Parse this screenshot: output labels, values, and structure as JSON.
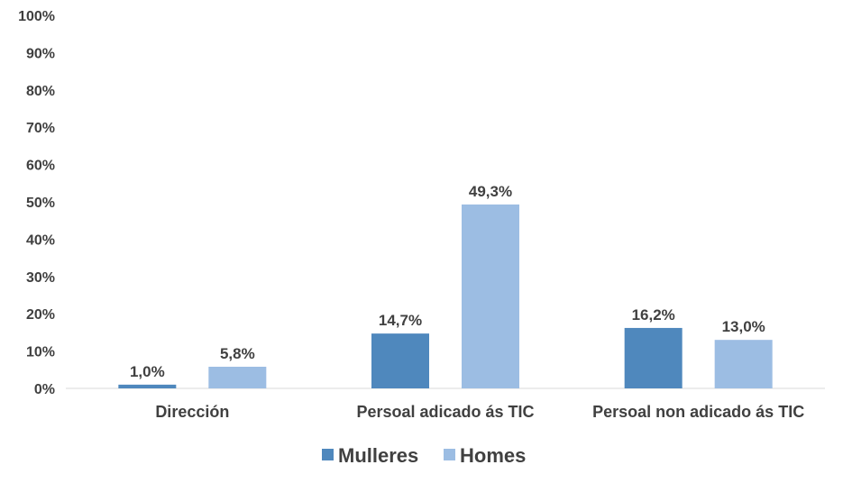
{
  "chart_data": {
    "type": "bar",
    "title": "",
    "xlabel": "",
    "ylabel": "",
    "categories": [
      "Dirección",
      "Persoal adicado ás TIC",
      "Persoal non adicado ás TIC"
    ],
    "series": [
      {
        "name": "Mulleres",
        "values": [
          1.0,
          14.7,
          16.2
        ],
        "labels": [
          "1,0%",
          "14,7%",
          "16,2%"
        ],
        "color": "#4f88bd"
      },
      {
        "name": "Homes",
        "values": [
          5.8,
          49.3,
          13.0
        ],
        "labels": [
          "5,8%",
          "49,3%",
          "13,0%"
        ],
        "color": "#9cbde3"
      }
    ],
    "ylim": [
      0,
      100
    ],
    "yticks": [
      "0%",
      "10%",
      "20%",
      "30%",
      "40%",
      "50%",
      "60%",
      "70%",
      "80%",
      "90%",
      "100%"
    ],
    "grid": false,
    "legend": "bottom-center"
  }
}
